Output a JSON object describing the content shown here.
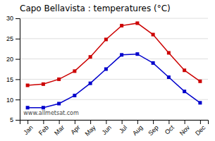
{
  "chart_data": {
    "type": "line",
    "title": "Capo Bellavista : temperatures (°C)",
    "categories": [
      "Jan",
      "Feb",
      "Mar",
      "Apr",
      "May",
      "Jun",
      "Jul",
      "Aug",
      "Sep",
      "Oct",
      "Nov",
      "Dec"
    ],
    "series": [
      {
        "color": "#cc0000",
        "marker": "square",
        "values": [
          13.5,
          13.8,
          15.0,
          17.0,
          20.5,
          24.8,
          28.2,
          28.8,
          26.0,
          21.5,
          17.2,
          14.5
        ]
      },
      {
        "color": "#0000cc",
        "marker": "square",
        "values": [
          8.0,
          8.0,
          9.0,
          11.0,
          14.0,
          17.5,
          21.0,
          21.2,
          19.0,
          15.5,
          12.0,
          9.2
        ]
      }
    ],
    "ylim": [
      5,
      30
    ],
    "yticks": [
      5,
      10,
      15,
      20,
      25,
      30
    ],
    "grid": "y",
    "annotations": [
      "www.allmetsat.com"
    ]
  }
}
